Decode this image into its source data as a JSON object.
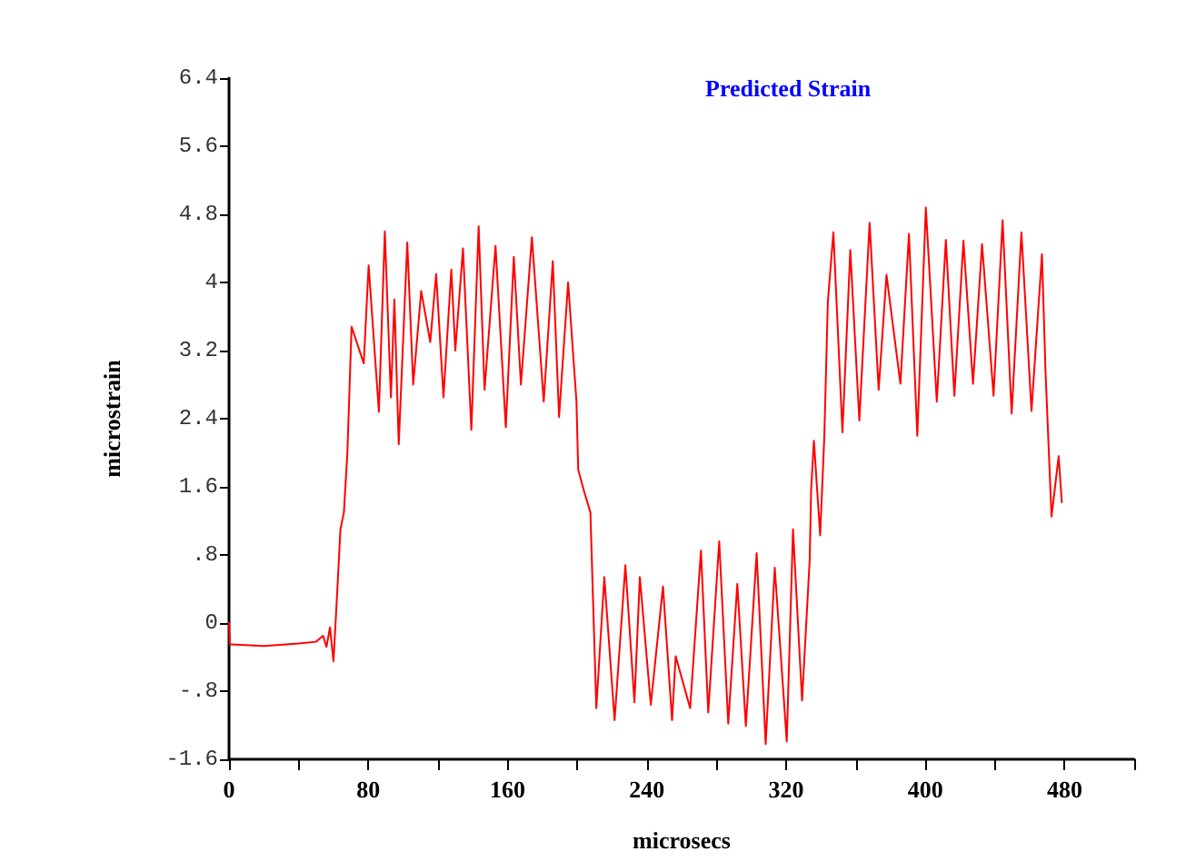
{
  "chart_data": {
    "type": "line",
    "title": "Predicted Strain",
    "xlabel": "microsecs",
    "ylabel": "microstrain",
    "grid": false,
    "marker": "none",
    "line_style": "solid",
    "xlim": [
      0,
      520
    ],
    "ylim": [
      -1.6,
      6.4
    ],
    "xticks": [
      0,
      {
        "value": 40,
        "label": null
      },
      80,
      {
        "value": 120,
        "label": null
      },
      160,
      {
        "value": 200,
        "label": null
      },
      240,
      {
        "value": 280,
        "label": null
      },
      320,
      {
        "value": 360,
        "label": null
      },
      400,
      {
        "value": 440,
        "label": null
      },
      480,
      {
        "value": 520,
        "label": null
      }
    ],
    "yticks": [
      {
        "value": -1.6,
        "label": "-1.6"
      },
      {
        "value": -0.8,
        "label": "-.8"
      },
      0,
      {
        "value": 0.8,
        "label": ".8"
      },
      1.6,
      2.4,
      3.2,
      4,
      4.8,
      5.6,
      6.4
    ],
    "series": [
      {
        "color": "#ff0000",
        "x": [
          0,
          0.5,
          20,
          40,
          50,
          54,
          56,
          58,
          60,
          62,
          64,
          66,
          68,
          70.4,
          77.4,
          80.2,
          86.1,
          89.5,
          93,
          95,
          97.5,
          102.4,
          105.8,
          110.4,
          115.6,
          119,
          123.2,
          127.7,
          130,
          134.4,
          139.2,
          143.4,
          146.8,
          150,
          153.1,
          159,
          163.6,
          167.7,
          174,
          180.8,
          186,
          189.6,
          194.8,
          199.6,
          200.6,
          204.2,
          207.6,
          211,
          215.6,
          221.5,
          227.7,
          232.9,
          236,
          242.3,
          249.3,
          254.5,
          256.6,
          264.9,
          271.1,
          275.3,
          281.6,
          286.8,
          292,
          296.9,
          303.1,
          308.3,
          313.5,
          320.4,
          324,
          329.2,
          333.6,
          334.4,
          336,
          339.6,
          342,
          344,
          347.2,
          352.4,
          356.9,
          362.1,
          368,
          373.2,
          377.7,
          385.7,
          390.6,
          395.4,
          400.3,
          406.6,
          411.8,
          416.7,
          421.9,
          427.4,
          432.6,
          439.2,
          444.4,
          449.6,
          455.2,
          461,
          467,
          469.1,
          472.5,
          476.6,
          478.4
        ],
        "values": [
          0,
          -0.25,
          -0.27,
          -0.24,
          -0.22,
          -0.15,
          -0.28,
          -0.05,
          -0.45,
          0.3,
          1.1,
          1.3,
          2.0,
          3.48,
          3.05,
          4.2,
          2.48,
          4.6,
          2.65,
          3.8,
          2.1,
          4.47,
          2.8,
          3.9,
          3.3,
          4.1,
          2.65,
          4.15,
          3.2,
          4.4,
          2.27,
          4.66,
          2.74,
          3.6,
          4.43,
          2.3,
          4.3,
          2.8,
          4.53,
          2.6,
          4.25,
          2.42,
          4.0,
          2.6,
          1.8,
          1.53,
          1.3,
          -1.0,
          0.54,
          -1.14,
          0.68,
          -0.93,
          0.54,
          -0.96,
          0.43,
          -1.14,
          -0.39,
          -1.0,
          0.85,
          -1.05,
          0.96,
          -1.18,
          0.46,
          -1.21,
          0.82,
          -1.42,
          0.65,
          -1.39,
          1.1,
          -0.91,
          0.75,
          1.56,
          2.14,
          1.03,
          2.2,
          3.77,
          4.59,
          2.24,
          4.38,
          2.38,
          4.7,
          2.74,
          4.09,
          2.81,
          4.57,
          2.2,
          4.88,
          2.6,
          4.5,
          2.67,
          4.49,
          2.81,
          4.45,
          2.67,
          4.73,
          2.46,
          4.59,
          2.49,
          4.33,
          2.93,
          1.25,
          1.96,
          1.42
        ]
      }
    ]
  }
}
